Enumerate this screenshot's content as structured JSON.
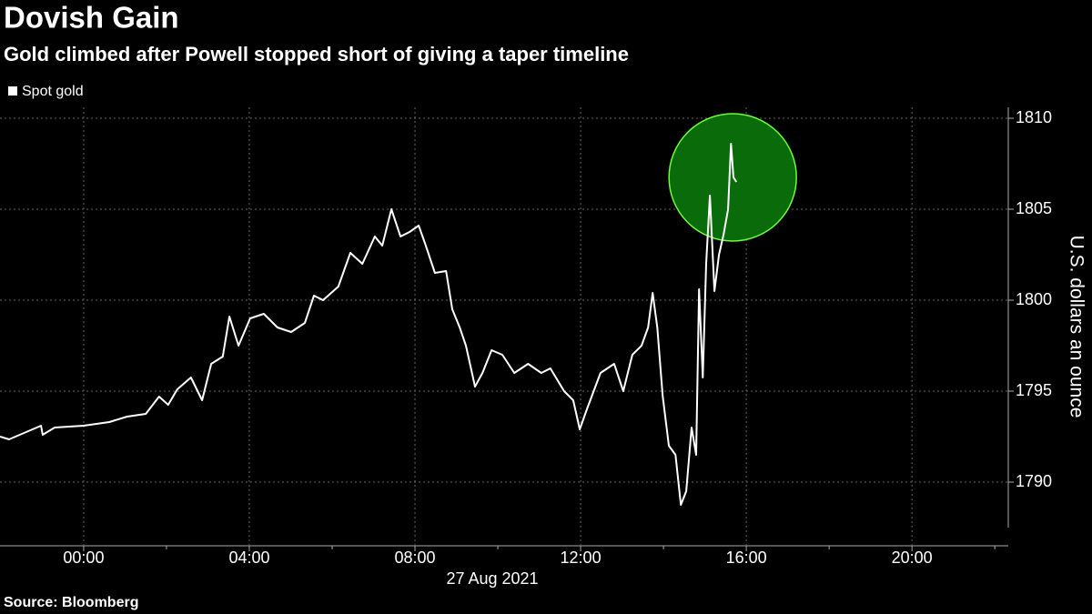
{
  "chart_data": {
    "type": "line",
    "title": "Dovish Gain",
    "subtitle": "Gold climbed after Powell stopped short of giving a taper timeline",
    "source": "Source: Bloomberg",
    "x_date_label": "27 Aug 2021",
    "y_axis_label": "U.S. dollars an ounce",
    "legend": "top-left",
    "grid": true,
    "highlight_color": "#0a6b0a",
    "xlim": [
      -2.02,
      22.26
    ],
    "xticks": [
      {
        "value": 0,
        "label": "00:00"
      },
      {
        "value": 4,
        "label": "04:00"
      },
      {
        "value": 8,
        "label": "08:00"
      },
      {
        "value": 12,
        "label": "12:00"
      },
      {
        "value": 16,
        "label": "16:00"
      },
      {
        "value": 20,
        "label": "20:00"
      }
    ],
    "xminorticks": [
      2,
      6,
      10,
      14,
      18,
      22
    ],
    "ylim": [
      1786.5,
      1810.6
    ],
    "yticks": [
      1790,
      1795,
      1800,
      1805,
      1810
    ],
    "series": [
      {
        "name": "Spot gold",
        "color": "#ffffff",
        "x": [
          -2.02,
          -1.8,
          -1.03,
          -0.99,
          -0.7,
          0,
          0.62,
          1.05,
          1.5,
          1.82,
          2.04,
          2.26,
          2.59,
          2.86,
          3.08,
          3.36,
          3.52,
          3.74,
          4.02,
          4.35,
          4.68,
          5.01,
          5.34,
          5.56,
          5.78,
          6.15,
          6.44,
          6.73,
          7.03,
          7.21,
          7.43,
          7.65,
          7.87,
          8.09,
          8.26,
          8.48,
          8.75,
          8.9,
          9.08,
          9.23,
          9.45,
          9.63,
          9.85,
          10.11,
          10.4,
          10.73,
          11.05,
          11.27,
          11.6,
          11.82,
          11.98,
          12.15,
          12.48,
          12.81,
          13.03,
          13.25,
          13.47,
          13.63,
          13.74,
          13.85,
          13.98,
          14.13,
          14.29,
          14.42,
          14.55,
          14.68,
          14.79,
          14.86,
          14.95,
          15.03,
          15.12,
          15.23,
          15.34,
          15.45,
          15.56,
          15.63,
          15.69,
          15.76
        ],
        "values": [
          1792.5,
          1792.35,
          1793.1,
          1792.6,
          1793,
          1793.1,
          1793.3,
          1793.6,
          1793.75,
          1794.7,
          1794.25,
          1795.1,
          1795.75,
          1794.5,
          1796.5,
          1796.9,
          1799.1,
          1797.5,
          1799,
          1799.25,
          1798.5,
          1798.25,
          1798.75,
          1800.25,
          1800,
          1800.75,
          1802.6,
          1802,
          1803.5,
          1803,
          1805,
          1803.5,
          1803.75,
          1804.1,
          1803,
          1801.5,
          1801.6,
          1799.5,
          1798.5,
          1797.5,
          1795.25,
          1796,
          1797.25,
          1797,
          1796,
          1796.5,
          1796,
          1796.25,
          1795,
          1794.5,
          1792.9,
          1794,
          1796,
          1796.5,
          1795,
          1797,
          1797.5,
          1798.5,
          1800.4,
          1798.5,
          1794.75,
          1792,
          1791.5,
          1788.75,
          1789.5,
          1793,
          1791.5,
          1800.6,
          1795.75,
          1802,
          1805.75,
          1800.5,
          1802.5,
          1803.6,
          1805,
          1808.6,
          1806.75,
          1806.5
        ]
      }
    ]
  }
}
